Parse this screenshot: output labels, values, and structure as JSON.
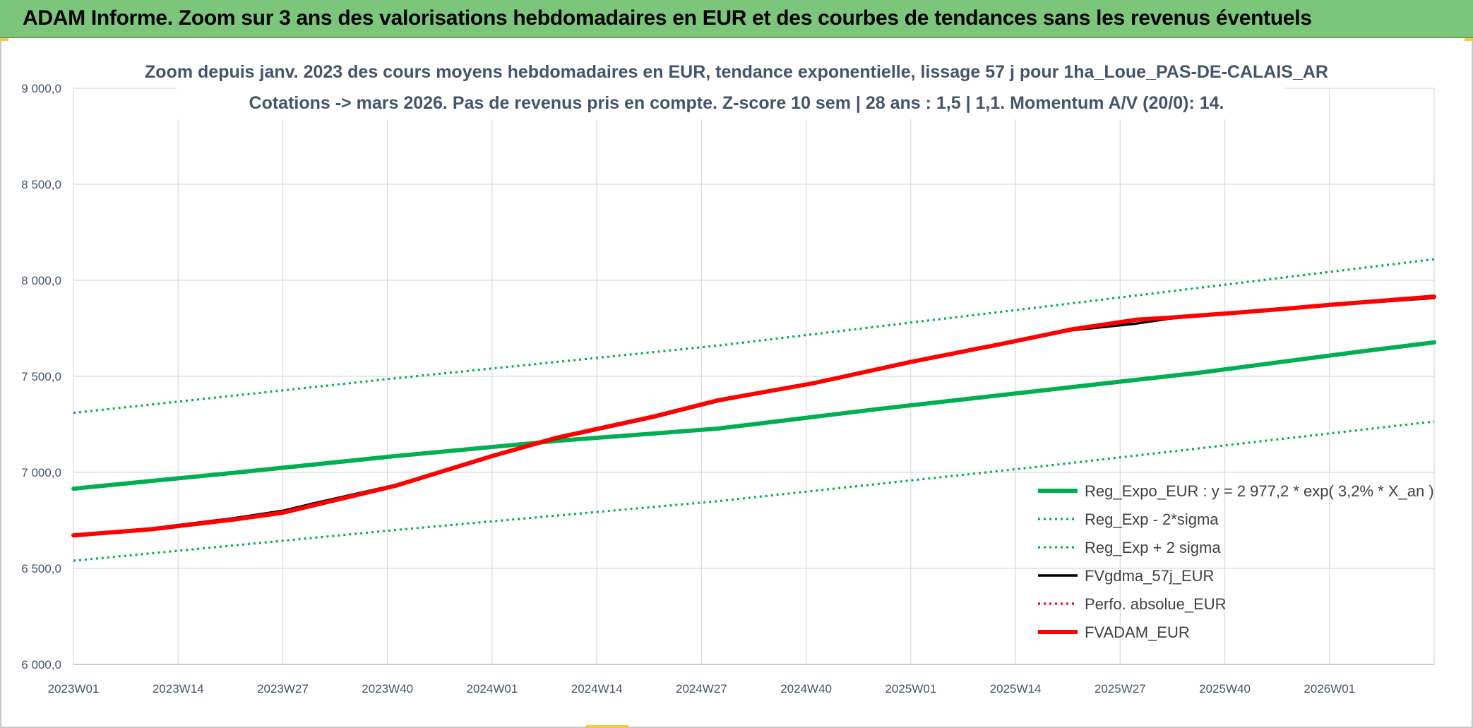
{
  "header": {
    "title": "ADAM Informe. Zoom sur 3 ans des valorisations hebdomadaires en EUR et des courbes de tendances sans les revenus éventuels"
  },
  "chart_data": {
    "type": "line",
    "title_line1": "Zoom depuis janv. 2023 des cours moyens hebdomadaires en EUR, tendance exponentielle, lissage 57 j pour 1ha_Loue_PAS-DE-CALAIS_AR",
    "title_line2": "Cotations -> mars 2026. Pas de revenus pris en compte. Z-score 10 sem | 28 ans : 1,5 | 1,1. Momentum A/V (20/0): 14.",
    "x_ticks": [
      "2023W01",
      "2023W14",
      "2023W27",
      "2023W40",
      "2024W01",
      "2024W14",
      "2024W27",
      "2024W40",
      "2025W01",
      "2025W14",
      "2025W27",
      "2025W40",
      "2026W01"
    ],
    "x_range_weeks": [
      0,
      169
    ],
    "y_ticks": [
      "6 000,0",
      "6 500,0",
      "7 000,0",
      "7 500,0",
      "8 000,0",
      "8 500,0",
      "9 000,0"
    ],
    "ylim": [
      6000,
      9000
    ],
    "grid": true,
    "legend_position": "bottom-right",
    "colors": {
      "green": "#00b050",
      "black": "#000000",
      "red": "#ff0000"
    },
    "series": [
      {
        "name": "Reg_Expo_EUR : y = 2 977,2 * exp( 3,2% *  X_an )",
        "style": "solid-thick",
        "color": "#00b050",
        "points": [
          [
            0,
            6915
          ],
          [
            20,
            6998
          ],
          [
            40,
            7085
          ],
          [
            60,
            7164
          ],
          [
            80,
            7228
          ],
          [
            100,
            7330
          ],
          [
            120,
            7425
          ],
          [
            140,
            7520
          ],
          [
            160,
            7630
          ],
          [
            169,
            7677
          ]
        ]
      },
      {
        "name": "Reg_Exp - 2*sigma",
        "style": "dotted",
        "color": "#00b050",
        "points": [
          [
            0,
            6540
          ],
          [
            40,
            6700
          ],
          [
            80,
            6850
          ],
          [
            120,
            7030
          ],
          [
            169,
            7265
          ]
        ]
      },
      {
        "name": "Reg_Exp + 2 sigma",
        "style": "dotted",
        "color": "#00b050",
        "points": [
          [
            0,
            7310
          ],
          [
            40,
            7490
          ],
          [
            80,
            7660
          ],
          [
            120,
            7860
          ],
          [
            169,
            8110
          ]
        ]
      },
      {
        "name": "FVgdma_57j_EUR",
        "style": "solid",
        "color": "#000000",
        "points": [
          [
            0,
            6672
          ],
          [
            10,
            6710
          ],
          [
            20,
            6762
          ],
          [
            26,
            6800
          ],
          [
            30,
            6840
          ],
          [
            40,
            6935
          ],
          [
            52,
            7085
          ],
          [
            60,
            7175
          ],
          [
            72,
            7285
          ],
          [
            80,
            7370
          ],
          [
            92,
            7465
          ],
          [
            104,
            7575
          ],
          [
            116,
            7675
          ],
          [
            124,
            7740
          ],
          [
            132,
            7775
          ],
          [
            136,
            7800
          ],
          [
            144,
            7830
          ],
          [
            150,
            7850
          ],
          [
            156,
            7870
          ],
          [
            169,
            7908
          ]
        ]
      },
      {
        "name": "Perfo. absolue_EUR",
        "style": "dotted",
        "color": "#ff0000",
        "points": []
      },
      {
        "name": "FVADAM_EUR",
        "style": "solid-thick",
        "color": "#ff0000",
        "points": [
          [
            0,
            6672
          ],
          [
            10,
            6705
          ],
          [
            20,
            6755
          ],
          [
            26,
            6790
          ],
          [
            30,
            6830
          ],
          [
            40,
            6930
          ],
          [
            52,
            7085
          ],
          [
            60,
            7180
          ],
          [
            72,
            7290
          ],
          [
            80,
            7375
          ],
          [
            92,
            7465
          ],
          [
            104,
            7575
          ],
          [
            116,
            7675
          ],
          [
            124,
            7745
          ],
          [
            132,
            7795
          ],
          [
            136,
            7805
          ],
          [
            144,
            7830
          ],
          [
            150,
            7850
          ],
          [
            156,
            7872
          ],
          [
            169,
            7915
          ]
        ]
      }
    ]
  }
}
